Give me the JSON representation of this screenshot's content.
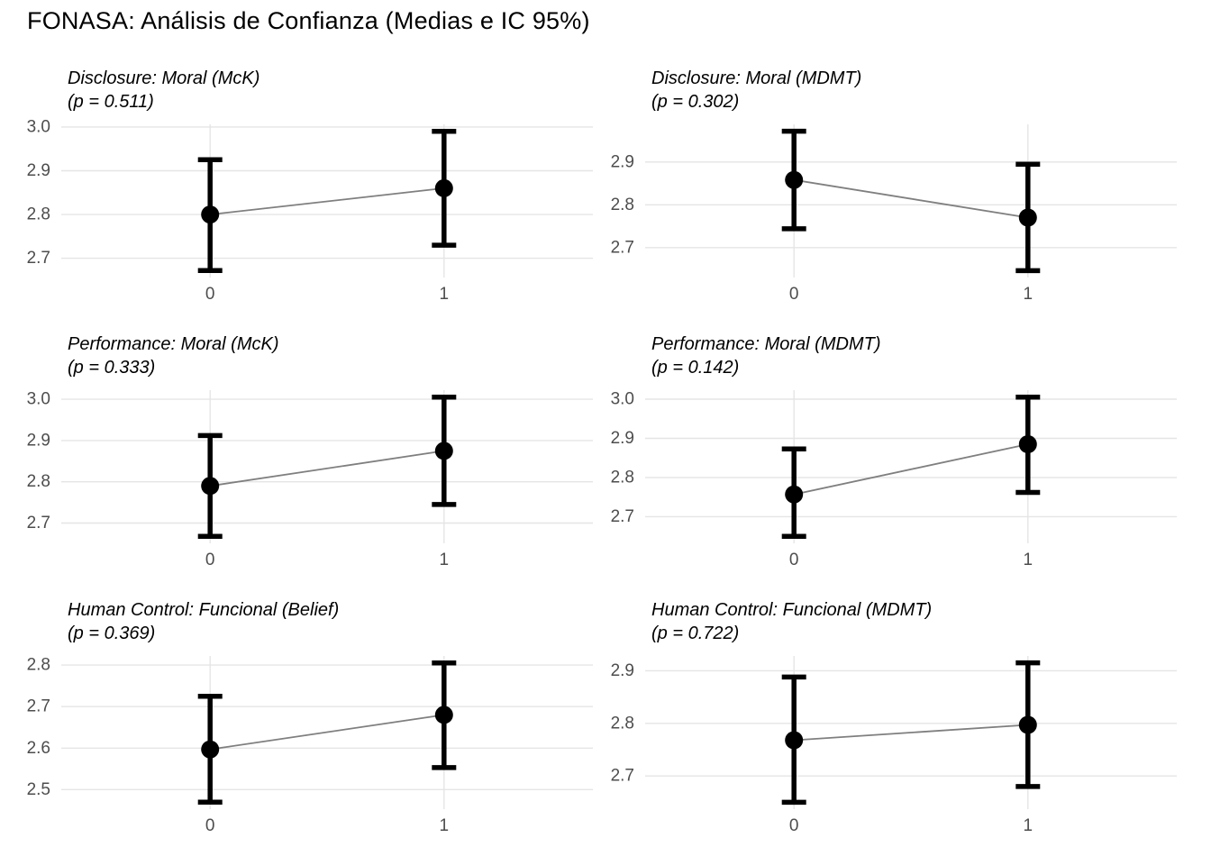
{
  "title": "FONASA: Análisis de Confianza (Medias e IC 95%)",
  "style": {
    "background": "#ffffff",
    "title_color": "#000000",
    "panel_title_color": "#000000",
    "tick_label_color": "#4d4d4d",
    "grid_color": "#e5e5e5",
    "point_color": "#000000",
    "error_bar_color": "#000000",
    "trend_line_color": "#7f7f7f",
    "legend": "none",
    "grid": "on"
  },
  "chart_data": [
    {
      "type": "line",
      "title": "Disclosure: Moral (McK)",
      "subtitle": "(p = 0.511)",
      "p_value": 0.511,
      "xlabel": "",
      "ylabel": "",
      "categories": [
        "0",
        "1"
      ],
      "series": [
        {
          "name": "media",
          "values": [
            2.8,
            2.86
          ]
        }
      ],
      "ci_low": [
        2.672,
        2.73
      ],
      "ci_high": [
        2.925,
        2.99
      ],
      "y_ticks": [
        2.7,
        2.8,
        2.9,
        3.0
      ],
      "ylim": [
        2.656,
        3.006
      ]
    },
    {
      "type": "line",
      "title": "Disclosure: Moral (MDMT)",
      "subtitle": "(p = 0.302)",
      "p_value": 0.302,
      "xlabel": "",
      "ylabel": "",
      "categories": [
        "0",
        "1"
      ],
      "series": [
        {
          "name": "media",
          "values": [
            2.858,
            2.77
          ]
        }
      ],
      "ci_low": [
        2.744,
        2.646
      ],
      "ci_high": [
        2.972,
        2.895
      ],
      "y_ticks": [
        2.7,
        2.8,
        2.9
      ],
      "ylim": [
        2.63,
        2.988
      ]
    },
    {
      "type": "line",
      "title": "Performance: Moral (McK)",
      "subtitle": "(p = 0.333)",
      "p_value": 0.333,
      "xlabel": "",
      "ylabel": "",
      "categories": [
        "0",
        "1"
      ],
      "series": [
        {
          "name": "media",
          "values": [
            2.79,
            2.875
          ]
        }
      ],
      "ci_low": [
        2.668,
        2.745
      ],
      "ci_high": [
        2.912,
        3.005
      ],
      "y_ticks": [
        2.7,
        2.8,
        2.9,
        3.0
      ],
      "ylim": [
        2.651,
        3.022
      ]
    },
    {
      "type": "line",
      "title": "Performance: Moral (MDMT)",
      "subtitle": "(p = 0.142)",
      "p_value": 0.142,
      "xlabel": "",
      "ylabel": "",
      "categories": [
        "0",
        "1"
      ],
      "series": [
        {
          "name": "media",
          "values": [
            2.757,
            2.885
          ]
        }
      ],
      "ci_low": [
        2.65,
        2.762
      ],
      "ci_high": [
        2.873,
        3.005
      ],
      "y_ticks": [
        2.7,
        2.8,
        2.9,
        3.0
      ],
      "ylim": [
        2.632,
        3.023
      ]
    },
    {
      "type": "line",
      "title": "Human Control: Funcional (Belief)",
      "subtitle": "(p = 0.369)",
      "p_value": 0.369,
      "xlabel": "",
      "ylabel": "",
      "categories": [
        "0",
        "1"
      ],
      "series": [
        {
          "name": "media",
          "values": [
            2.597,
            2.68
          ]
        }
      ],
      "ci_low": [
        2.47,
        2.553
      ],
      "ci_high": [
        2.725,
        2.805
      ],
      "y_ticks": [
        2.5,
        2.6,
        2.7,
        2.8
      ],
      "ylim": [
        2.453,
        2.822
      ]
    },
    {
      "type": "line",
      "title": "Human Control: Funcional (MDMT)",
      "subtitle": "(p = 0.722)",
      "p_value": 0.722,
      "xlabel": "",
      "ylabel": "",
      "categories": [
        "0",
        "1"
      ],
      "series": [
        {
          "name": "media",
          "values": [
            2.768,
            2.797
          ]
        }
      ],
      "ci_low": [
        2.65,
        2.68
      ],
      "ci_high": [
        2.888,
        2.915
      ],
      "y_ticks": [
        2.7,
        2.8,
        2.9
      ],
      "ylim": [
        2.637,
        2.928
      ]
    }
  ]
}
